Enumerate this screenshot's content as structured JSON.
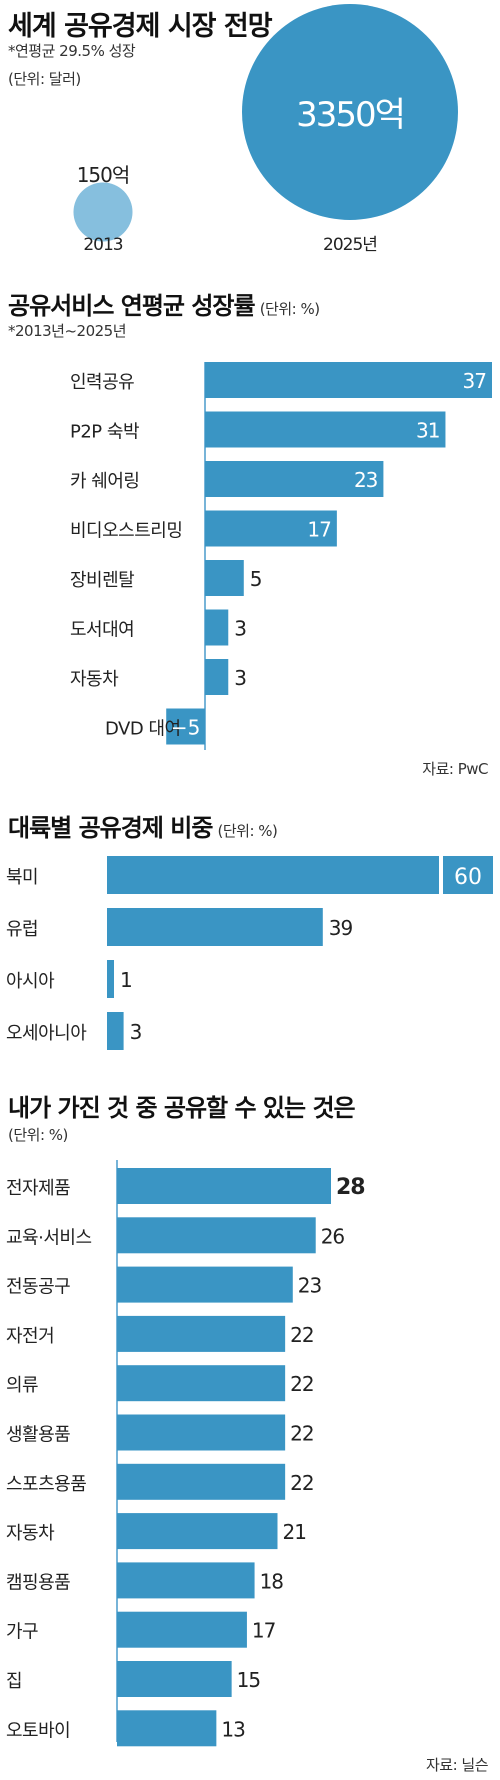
{
  "colors": {
    "bar": "#3a95c4",
    "bubble_small": "#86bfde",
    "axis": "#4a9bcc",
    "text": "#222222"
  },
  "section1": {
    "title": "세계 공유경제 시장 전망",
    "subtitle": "*연평균 29.5% 성장",
    "unit": "(단위: 달러)"
  },
  "section2": {
    "title": "공유서비스 연평균 성장률",
    "unit": "(단위: %)",
    "subtitle": "*2013년~2025년",
    "source": "자료: PwC"
  },
  "section3": {
    "title": "대륙별 공유경제 비중",
    "unit": "(단위: %)"
  },
  "section4": {
    "title": "내가 가진 것 중 공유할 수 있는 것은",
    "unit": "(단위: %)",
    "source": "자료: 닐슨"
  },
  "chart_data": [
    {
      "type": "bubble",
      "categories": [
        "2013",
        "2025년"
      ],
      "values": [
        150,
        3350
      ],
      "value_labels": [
        "150억",
        "3350억"
      ]
    },
    {
      "type": "bar",
      "orientation": "horizontal",
      "categories": [
        "인력공유",
        "P2P 숙박",
        "카 쉐어링",
        "비디오스트리밍",
        "장비렌탈",
        "도서대여",
        "자동차",
        "DVD 대여"
      ],
      "values": [
        37,
        31,
        23,
        17,
        5,
        3,
        3,
        -5
      ],
      "value_labels": [
        "37",
        "31",
        "23",
        "17",
        "5",
        "3",
        "3",
        "−5"
      ],
      "xlim": [
        -5,
        37
      ]
    },
    {
      "type": "bar",
      "orientation": "horizontal",
      "categories": [
        "북미",
        "유럽",
        "아시아",
        "오세아니아"
      ],
      "values": [
        60,
        39,
        1,
        3
      ],
      "value_labels": [
        "60",
        "39",
        "1",
        "3"
      ],
      "xlim": [
        0,
        60
      ]
    },
    {
      "type": "bar",
      "orientation": "horizontal",
      "categories": [
        "전자제품",
        "교육·서비스",
        "전동공구",
        "자전거",
        "의류",
        "생활용품",
        "스포츠용품",
        "자동차",
        "캠핑용품",
        "가구",
        "집",
        "오토바이"
      ],
      "values": [
        28,
        26,
        23,
        22,
        22,
        22,
        22,
        21,
        18,
        17,
        15,
        13
      ],
      "value_labels": [
        "28",
        "26",
        "23",
        "22",
        "22",
        "22",
        "22",
        "21",
        "18",
        "17",
        "15",
        "13"
      ],
      "xlim": [
        0,
        28
      ]
    }
  ]
}
